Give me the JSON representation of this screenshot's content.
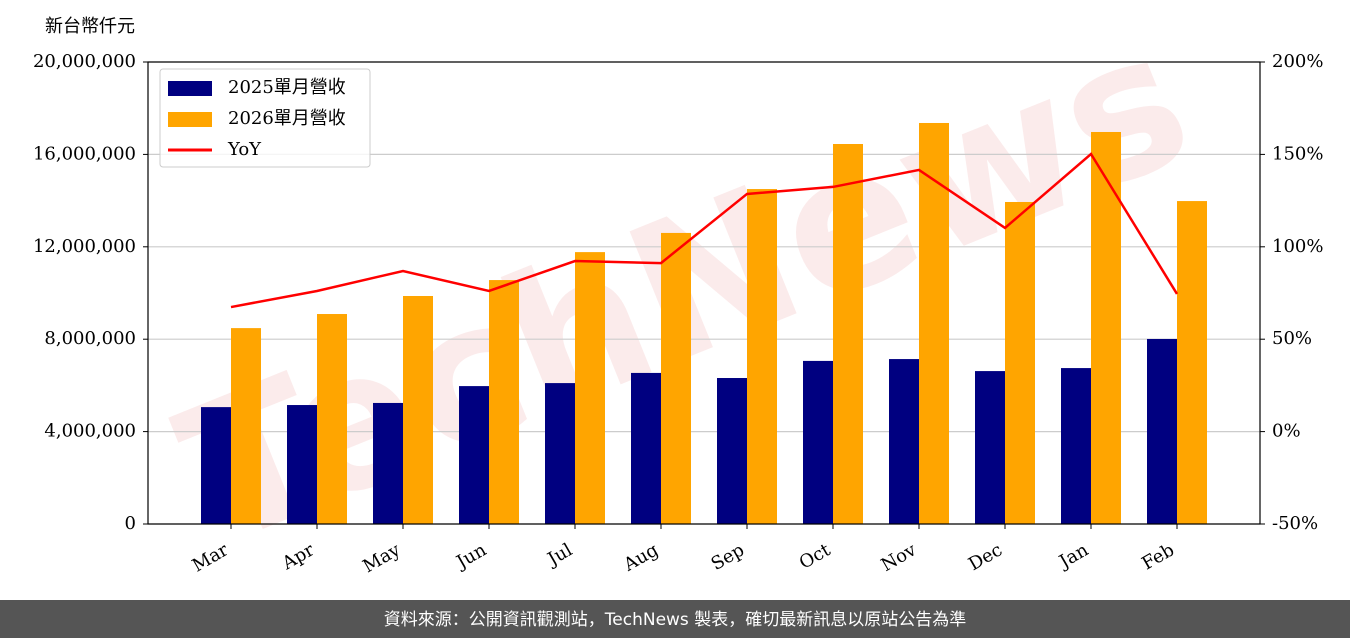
{
  "chart_data": {
    "type": "bar-line",
    "y_label": "新台幣仟元",
    "categories": [
      "Mar",
      "Apr",
      "May",
      "Jun",
      "Jul",
      "Aug",
      "Sep",
      "Oct",
      "Nov",
      "Dec",
      "Jan",
      "Feb"
    ],
    "series": [
      {
        "name": "2025單月營收",
        "color": "#000080",
        "type": "bar",
        "values": [
          5060000,
          5150000,
          5240000,
          5970000,
          6100000,
          6540000,
          6320000,
          7060000,
          7140000,
          6620000,
          6750000,
          8010000
        ]
      },
      {
        "name": "2026單月營收",
        "color": "#ffa500",
        "type": "bar",
        "values": [
          8480000,
          9090000,
          9870000,
          10560000,
          11770000,
          12600000,
          14500000,
          16450000,
          17360000,
          13940000,
          16970000,
          13980000
        ]
      },
      {
        "name": "YoY",
        "color": "#ff0000",
        "type": "line",
        "axis": "y2",
        "values": [
          67.4,
          76.1,
          86.9,
          76.1,
          92.3,
          91.2,
          128.6,
          132.4,
          141.6,
          110.2,
          150.2,
          74.5
        ]
      }
    ],
    "ylim": [
      0,
      20000000
    ],
    "yticks": [
      0,
      {
        "value": 4000000,
        "label": "4,000,000"
      },
      {
        "value": 8000000,
        "label": "8,000,000"
      },
      {
        "value": 12000000,
        "label": "12,000,000"
      },
      {
        "value": 16000000,
        "label": "16,000,000"
      },
      {
        "value": 20000000,
        "label": "20,000,000"
      }
    ],
    "y2lim": [
      -50,
      200
    ],
    "y2ticks": [
      {
        "value": -50,
        "label": "-50%"
      },
      {
        "value": 0,
        "label": "0%"
      },
      {
        "value": 50,
        "label": "50%"
      },
      {
        "value": 100,
        "label": "100%"
      },
      {
        "value": 150,
        "label": "150%"
      },
      {
        "value": 200,
        "label": "200%"
      }
    ],
    "grid": true,
    "legend": "upper-left",
    "watermark": "TechNews",
    "footer": "資料來源：公開資訊觀測站，TechNews 製表，確切最新訊息以原站公告為準"
  }
}
